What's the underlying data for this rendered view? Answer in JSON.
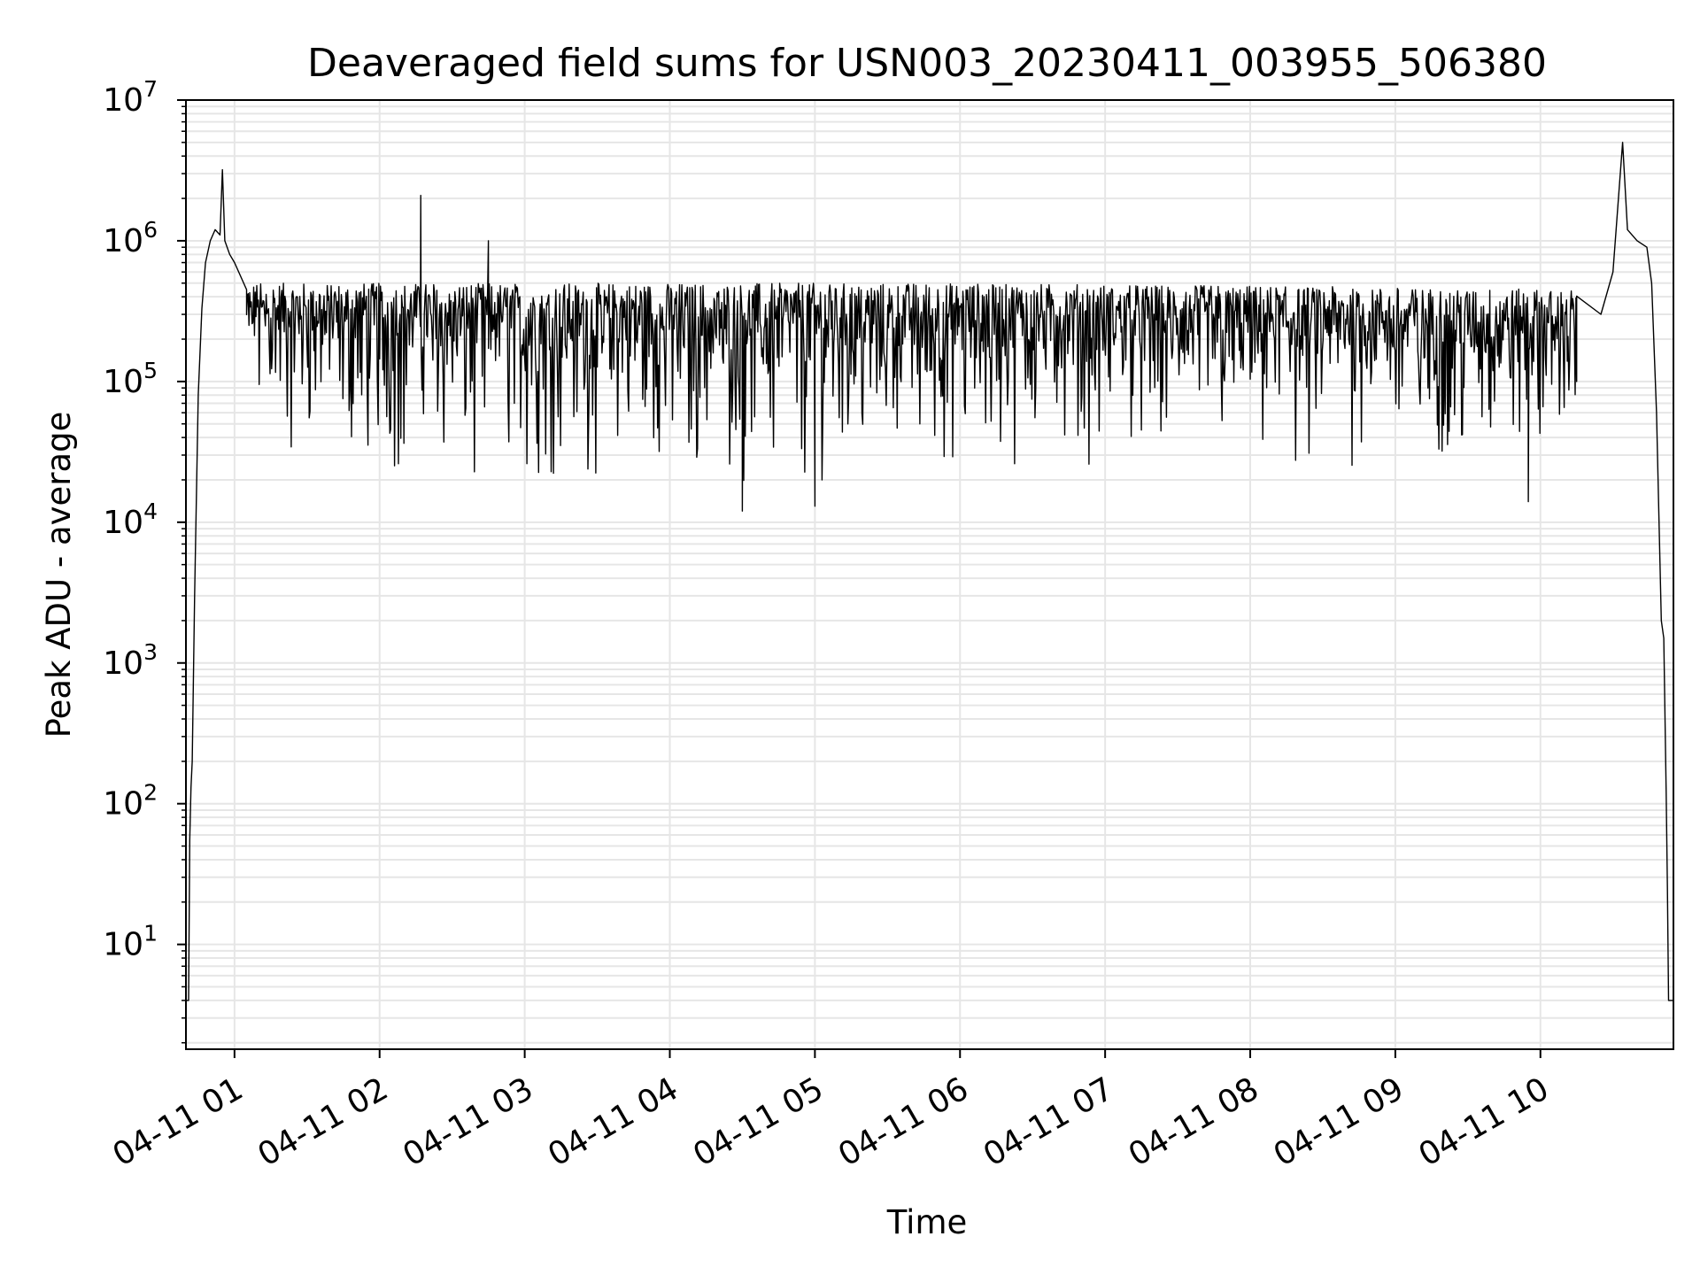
{
  "chart_data": {
    "type": "line",
    "title": "Deaveraged field sums for USN003_20230411_003955_506380",
    "xlabel": "Time",
    "ylabel": "Peak ADU - average",
    "x_tick_labels": [
      "04-11 01",
      "04-11 02",
      "04-11 03",
      "04-11 04",
      "04-11 05",
      "04-11 06",
      "04-11 07",
      "04-11 08",
      "04-11 09",
      "04-11 10"
    ],
    "x_ticks": [
      "2023-04-11 01:00",
      "2023-04-11 02:00",
      "2023-04-11 03:00",
      "2023-04-11 04:00",
      "2023-04-11 05:00",
      "2023-04-11 06:00",
      "2023-04-11 07:00",
      "2023-04-11 08:00",
      "2023-04-11 09:00",
      "2023-04-11 10:00"
    ],
    "xlim": [
      "2023-04-11 00:39:55",
      "2023-04-11 10:55:00"
    ],
    "y_tick_labels": [
      {
        "base": "10",
        "exp": "1"
      },
      {
        "base": "10",
        "exp": "2"
      },
      {
        "base": "10",
        "exp": "3"
      },
      {
        "base": "10",
        "exp": "4"
      },
      {
        "base": "10",
        "exp": "5"
      },
      {
        "base": "10",
        "exp": "6"
      },
      {
        "base": "10",
        "exp": "7"
      }
    ],
    "y_ticks": [
      10,
      100,
      1000,
      10000,
      100000,
      1000000,
      10000000
    ],
    "ylim": [
      1.8,
      10000000
    ],
    "yscale": "log",
    "grid": true,
    "grid_color": "#e6e6e6",
    "line_color": "#000000",
    "series": [
      {
        "description_points": [
          [
            "2023-04-11 00:39:55",
            4
          ],
          [
            "2023-04-11 00:41:00",
            4
          ],
          [
            "2023-04-11 00:41:30",
            55
          ],
          [
            "2023-04-11 00:42:00",
            130
          ],
          [
            "2023-04-11 00:42:30",
            200
          ],
          [
            "2023-04-11 00:43:30",
            3000
          ],
          [
            "2023-04-11 00:45:00",
            80000
          ],
          [
            "2023-04-11 00:46:30",
            330000
          ],
          [
            "2023-04-11 00:48:00",
            700000
          ],
          [
            "2023-04-11 00:50:00",
            1000000
          ],
          [
            "2023-04-11 00:52:00",
            1200000
          ],
          [
            "2023-04-11 00:54:00",
            1100000
          ],
          [
            "2023-04-11 00:55:00",
            3200000
          ],
          [
            "2023-04-11 00:56:00",
            1000000
          ],
          [
            "2023-04-11 00:58:00",
            800000
          ],
          [
            "2023-04-11 01:00:00",
            700000
          ],
          [
            "2023-04-11 01:05:00",
            450000
          ],
          [
            "2023-04-11 01:10:00",
            300000
          ],
          [
            "2023-04-11 02:17:00",
            2100000
          ],
          [
            "2023-04-11 02:45:00",
            1000000
          ],
          [
            "2023-04-11 04:30:00",
            12000
          ],
          [
            "2023-04-11 05:00:00",
            13000
          ],
          [
            "2023-04-11 09:55:00",
            14000
          ],
          [
            "2023-04-11 10:15:00",
            100000
          ],
          [
            "2023-04-11 10:25:00",
            300000
          ],
          [
            "2023-04-11 10:30:00",
            600000
          ],
          [
            "2023-04-11 10:34:00",
            5000000
          ],
          [
            "2023-04-11 10:36:00",
            1200000
          ],
          [
            "2023-04-11 10:40:00",
            1000000
          ],
          [
            "2023-04-11 10:44:00",
            900000
          ],
          [
            "2023-04-11 10:46:00",
            500000
          ],
          [
            "2023-04-11 10:48:00",
            60000
          ],
          [
            "2023-04-11 10:50:00",
            2000
          ],
          [
            "2023-04-11 10:51:00",
            1500
          ],
          [
            "2023-04-11 10:52:00",
            120
          ],
          [
            "2023-04-11 10:52:30",
            25
          ],
          [
            "2023-04-11 10:53:00",
            4
          ],
          [
            "2023-04-11 10:55:00",
            4
          ]
        ],
        "noisy_band": {
          "time_range": [
            "2023-04-11 01:05:00",
            "2023-04-11 10:15:00"
          ],
          "upper_envelope": [
            [
              "2023-04-11 01:05:00",
              500000
            ],
            [
              "2023-04-11 03:00:00",
              500000
            ],
            [
              "2023-04-11 06:00:00",
              500000
            ],
            [
              "2023-04-11 08:00:00",
              480000
            ],
            [
              "2023-04-11 10:15:00",
              450000
            ]
          ],
          "lower_envelope": [
            [
              "2023-04-11 01:05:00",
              50000
            ],
            [
              "2023-04-11 01:20:00",
              30000
            ],
            [
              "2023-04-11 02:00:00",
              20000
            ],
            [
              "2023-04-11 03:00:00",
              18000
            ],
            [
              "2023-04-11 04:30:00",
              15000
            ],
            [
              "2023-04-11 05:30:00",
              20000
            ],
            [
              "2023-04-11 06:30:00",
              25000
            ],
            [
              "2023-04-11 08:00:00",
              20000
            ],
            [
              "2023-04-11 09:30:00",
              20000
            ],
            [
              "2023-04-11 10:15:00",
              30000
            ]
          ]
        }
      }
    ]
  }
}
